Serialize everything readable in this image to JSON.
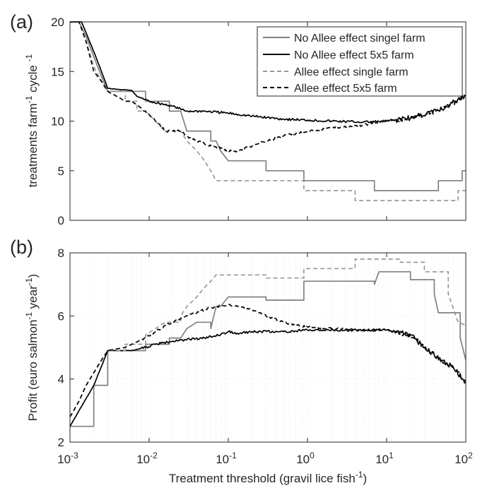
{
  "chart_data": [
    {
      "type": "line",
      "panel_label": "(a)",
      "x_scale": "log",
      "xlim": [
        0.001,
        100
      ],
      "ylim": [
        0,
        20
      ],
      "ylabel": "treatments farm",
      "ylabel_sup": "-1",
      "ylabel_tail": " cycle ",
      "ylabel_sup2": "-1",
      "y_ticks": [
        0,
        5,
        10,
        15,
        20
      ],
      "x_tick_labels_shown": false,
      "grid": false,
      "legend_position": "top-right",
      "series": [
        {
          "name": "No Allee effect singel farm",
          "color": "#808080",
          "dash": "solid",
          "style": "step",
          "x": [
            0.001,
            0.0013,
            0.0016,
            0.002,
            0.0025,
            0.003,
            0.006,
            0.009,
            0.012,
            0.018,
            0.025,
            0.03,
            0.04,
            0.06,
            0.07,
            0.08,
            0.1,
            0.3,
            0.9,
            7,
            20,
            45,
            90,
            100
          ],
          "y": [
            21,
            20,
            18.5,
            16.5,
            14.5,
            13,
            13,
            12,
            12,
            11,
            11,
            9,
            9,
            8,
            8,
            7,
            6,
            5,
            4,
            3,
            3,
            4,
            5,
            5
          ]
        },
        {
          "name": "No Allee effect 5x5 farm",
          "color": "#000000",
          "dash": "solid",
          "style": "noisy",
          "x": [
            0.001,
            0.0014,
            0.002,
            0.0025,
            0.003,
            0.004,
            0.006,
            0.007,
            0.01,
            0.02,
            0.025,
            0.03,
            0.05,
            0.1,
            0.2,
            0.5,
            1,
            2,
            5,
            8,
            10,
            20,
            50,
            100
          ],
          "y": [
            21,
            20,
            17,
            15,
            13.3,
            13.2,
            13.1,
            12.5,
            12,
            11.5,
            11.2,
            11,
            11,
            10.8,
            10.5,
            10.2,
            10.1,
            10,
            9.9,
            9.95,
            10,
            10.3,
            11.2,
            12.6
          ]
        },
        {
          "name": "Allee effect single farm",
          "color": "#999999",
          "dash": "dashed",
          "style": "step",
          "x": [
            0.001,
            0.0013,
            0.0016,
            0.002,
            0.0025,
            0.003,
            0.005,
            0.007,
            0.009,
            0.012,
            0.016,
            0.025,
            0.03,
            0.04,
            0.05,
            0.06,
            0.07,
            0.9,
            4,
            15,
            80,
            100
          ],
          "y": [
            21,
            20,
            18,
            15.5,
            14,
            13,
            12,
            11,
            11,
            10,
            9,
            9,
            8,
            7,
            6,
            5,
            4,
            3,
            2,
            2,
            3,
            3
          ]
        },
        {
          "name": "Allee effect 5x5 farm",
          "color": "#000000",
          "dash": "dashed",
          "style": "noisy",
          "x": [
            0.001,
            0.0013,
            0.0016,
            0.002,
            0.0025,
            0.003,
            0.005,
            0.006,
            0.009,
            0.012,
            0.016,
            0.025,
            0.03,
            0.04,
            0.05,
            0.07,
            0.1,
            0.13,
            0.2,
            0.3,
            0.5,
            1,
            2,
            5,
            10,
            20,
            50,
            100
          ],
          "y": [
            21,
            20,
            18,
            15,
            14,
            13,
            12,
            12,
            11,
            10,
            9,
            9,
            8.5,
            8,
            7.7,
            7.4,
            7,
            7,
            7.5,
            8,
            8.5,
            9,
            9.3,
            9.6,
            10,
            10.3,
            11.2,
            12.6
          ]
        }
      ]
    },
    {
      "type": "line",
      "panel_label": "(b)",
      "x_scale": "log",
      "xlim": [
        0.001,
        100
      ],
      "ylim": [
        2,
        8
      ],
      "xlabel": "Treatment threshold (gravil lice fish",
      "xlabel_sup": "-1",
      "xlabel_tail": ")",
      "ylabel": "Profit (euro salmon",
      "ylabel_sup": "-1",
      "ylabel_tail": " year",
      "ylabel_sup2": "-1",
      "ylabel_end": ")",
      "y_ticks": [
        2,
        4,
        6,
        8
      ],
      "x_ticks": [
        {
          "value": 0.001,
          "base": "10",
          "exp": "-3"
        },
        {
          "value": 0.01,
          "base": "10",
          "exp": "-2"
        },
        {
          "value": 0.1,
          "base": "10",
          "exp": "-1"
        },
        {
          "value": 1,
          "base": "10",
          "exp": "0"
        },
        {
          "value": 10,
          "base": "10",
          "exp": "1"
        },
        {
          "value": 100,
          "base": "10",
          "exp": "2"
        }
      ],
      "grid": true,
      "series": [
        {
          "name": "No Allee effect singel farm",
          "color": "#808080",
          "dash": "solid",
          "style": "step",
          "x": [
            0.001,
            0.002,
            0.003,
            0.006,
            0.009,
            0.012,
            0.018,
            0.025,
            0.03,
            0.04,
            0.06,
            0.07,
            0.08,
            0.1,
            0.3,
            0.9,
            7,
            8,
            20,
            40,
            45,
            85,
            100
          ],
          "y": [
            2.5,
            3.8,
            4.9,
            4.9,
            5.1,
            5.1,
            5.3,
            5.3,
            5.6,
            5.8,
            5.6,
            6.3,
            6.3,
            6.6,
            6.5,
            7.1,
            7.0,
            7.4,
            7.15,
            6.7,
            6.1,
            5.3,
            4.6
          ]
        },
        {
          "name": "No Allee effect 5x5 farm",
          "color": "#000000",
          "dash": "solid",
          "style": "noisy",
          "x": [
            0.001,
            0.002,
            0.003,
            0.006,
            0.009,
            0.012,
            0.02,
            0.03,
            0.05,
            0.08,
            0.1,
            0.13,
            0.2,
            0.5,
            1,
            2,
            5,
            10,
            20,
            30,
            50,
            70,
            100
          ],
          "y": [
            2.5,
            3.8,
            4.9,
            4.9,
            5.0,
            5.1,
            5.2,
            5.25,
            5.3,
            5.4,
            5.5,
            5.45,
            5.5,
            5.5,
            5.55,
            5.55,
            5.55,
            5.55,
            5.4,
            5.0,
            4.6,
            4.35,
            3.9
          ]
        },
        {
          "name": "Allee effect single farm",
          "color": "#999999",
          "dash": "dashed",
          "style": "step",
          "x": [
            0.001,
            0.0013,
            0.0016,
            0.002,
            0.0025,
            0.003,
            0.005,
            0.006,
            0.009,
            0.012,
            0.016,
            0.025,
            0.03,
            0.04,
            0.05,
            0.06,
            0.07,
            0.3,
            0.9,
            4,
            15,
            30,
            60,
            80,
            100
          ],
          "y": [
            2.8,
            3.3,
            3.8,
            4.2,
            4.6,
            4.9,
            5.1,
            5.1,
            5.4,
            5.6,
            5.8,
            6.0,
            6.3,
            6.6,
            6.9,
            7.1,
            7.3,
            7.2,
            7.5,
            7.8,
            7.7,
            7.4,
            6.7,
            5.8,
            5.7
          ]
        },
        {
          "name": "Allee effect 5x5 farm",
          "color": "#000000",
          "dash": "dashed",
          "style": "noisy",
          "x": [
            0.001,
            0.0013,
            0.0016,
            0.002,
            0.0025,
            0.003,
            0.005,
            0.006,
            0.009,
            0.012,
            0.016,
            0.025,
            0.03,
            0.04,
            0.05,
            0.07,
            0.1,
            0.13,
            0.2,
            0.3,
            0.5,
            1,
            2,
            5,
            10,
            20,
            30,
            50,
            70,
            100
          ],
          "y": [
            2.8,
            3.3,
            3.8,
            4.2,
            4.6,
            4.9,
            5.0,
            5.1,
            5.3,
            5.5,
            5.7,
            5.9,
            6.0,
            6.1,
            6.2,
            6.3,
            6.35,
            6.3,
            6.2,
            6.0,
            5.8,
            5.65,
            5.6,
            5.55,
            5.55,
            5.4,
            5.0,
            4.6,
            4.35,
            3.9
          ]
        }
      ]
    }
  ]
}
